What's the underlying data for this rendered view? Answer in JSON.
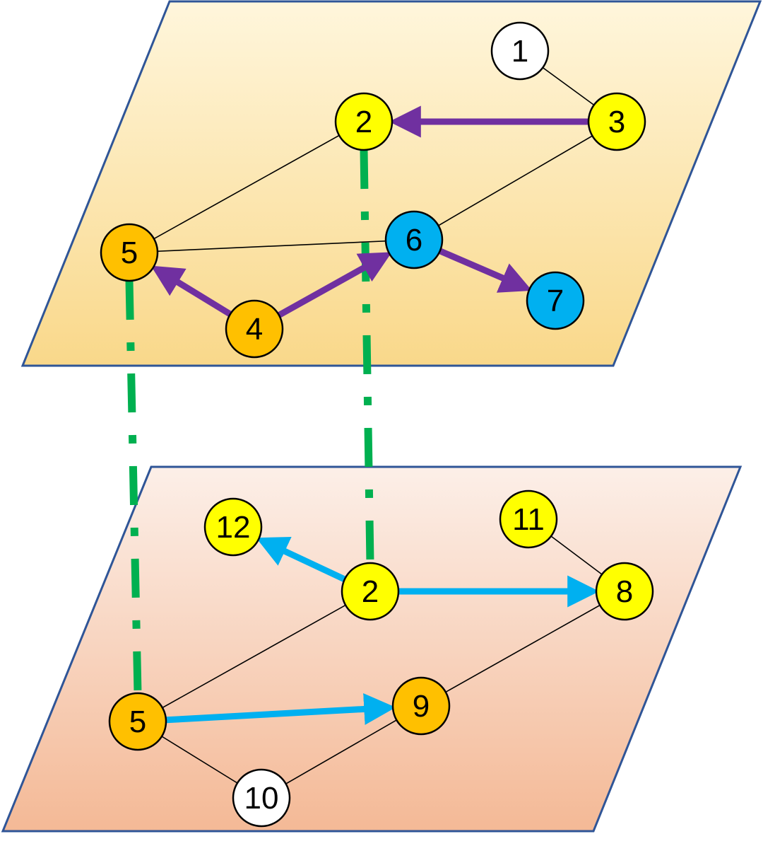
{
  "colors": {
    "plane_border": "#2f5597",
    "top_plane_gradient": [
      "#fff6dc",
      "#f9d88a"
    ],
    "bottom_plane_gradient": [
      "#fcefe8",
      "#f4b996"
    ],
    "node_yellow": "#ffff00",
    "node_orange": "#ffc000",
    "node_blue": "#00b0f0",
    "node_white": "#ffffff",
    "node_stroke": "#000000",
    "purple_arrow": "#7030a0",
    "blue_arrow": "#00b0f0",
    "interlayer_link": "#00b050",
    "edge": "#000000"
  },
  "layers": {
    "top": {
      "nodes": [
        {
          "id": "t1",
          "label": "1",
          "fill": "white"
        },
        {
          "id": "t2",
          "label": "2",
          "fill": "yellow"
        },
        {
          "id": "t3",
          "label": "3",
          "fill": "yellow"
        },
        {
          "id": "t4",
          "label": "4",
          "fill": "orange"
        },
        {
          "id": "t5",
          "label": "5",
          "fill": "orange"
        },
        {
          "id": "t6",
          "label": "6",
          "fill": "blue"
        },
        {
          "id": "t7",
          "label": "7",
          "fill": "blue"
        }
      ],
      "edges": [
        [
          "t1",
          "t3"
        ],
        [
          "t2",
          "t3"
        ],
        [
          "t2",
          "t5"
        ],
        [
          "t3",
          "t6"
        ],
        [
          "t5",
          "t6"
        ],
        [
          "t5",
          "t4"
        ]
      ],
      "arrows": [
        [
          "t3",
          "t2"
        ],
        [
          "t4",
          "t5"
        ],
        [
          "t4",
          "t6"
        ],
        [
          "t6",
          "t7"
        ]
      ]
    },
    "bottom": {
      "nodes": [
        {
          "id": "b2",
          "label": "2",
          "fill": "yellow"
        },
        {
          "id": "b5",
          "label": "5",
          "fill": "orange"
        },
        {
          "id": "b8",
          "label": "8",
          "fill": "yellow"
        },
        {
          "id": "b9",
          "label": "9",
          "fill": "orange"
        },
        {
          "id": "b10",
          "label": "10",
          "fill": "white"
        },
        {
          "id": "b11",
          "label": "11",
          "fill": "yellow"
        },
        {
          "id": "b12",
          "label": "12",
          "fill": "yellow"
        }
      ],
      "edges": [
        [
          "b11",
          "b8"
        ],
        [
          "b2",
          "b8"
        ],
        [
          "b2",
          "b5"
        ],
        [
          "b8",
          "b9"
        ],
        [
          "b5",
          "b10"
        ],
        [
          "b10",
          "b9"
        ]
      ],
      "arrows": [
        [
          "b2",
          "b12"
        ],
        [
          "b2",
          "b8"
        ],
        [
          "b5",
          "b9"
        ]
      ]
    }
  },
  "interlayer_links": [
    [
      "t2",
      "b2"
    ],
    [
      "t5",
      "b5"
    ]
  ]
}
